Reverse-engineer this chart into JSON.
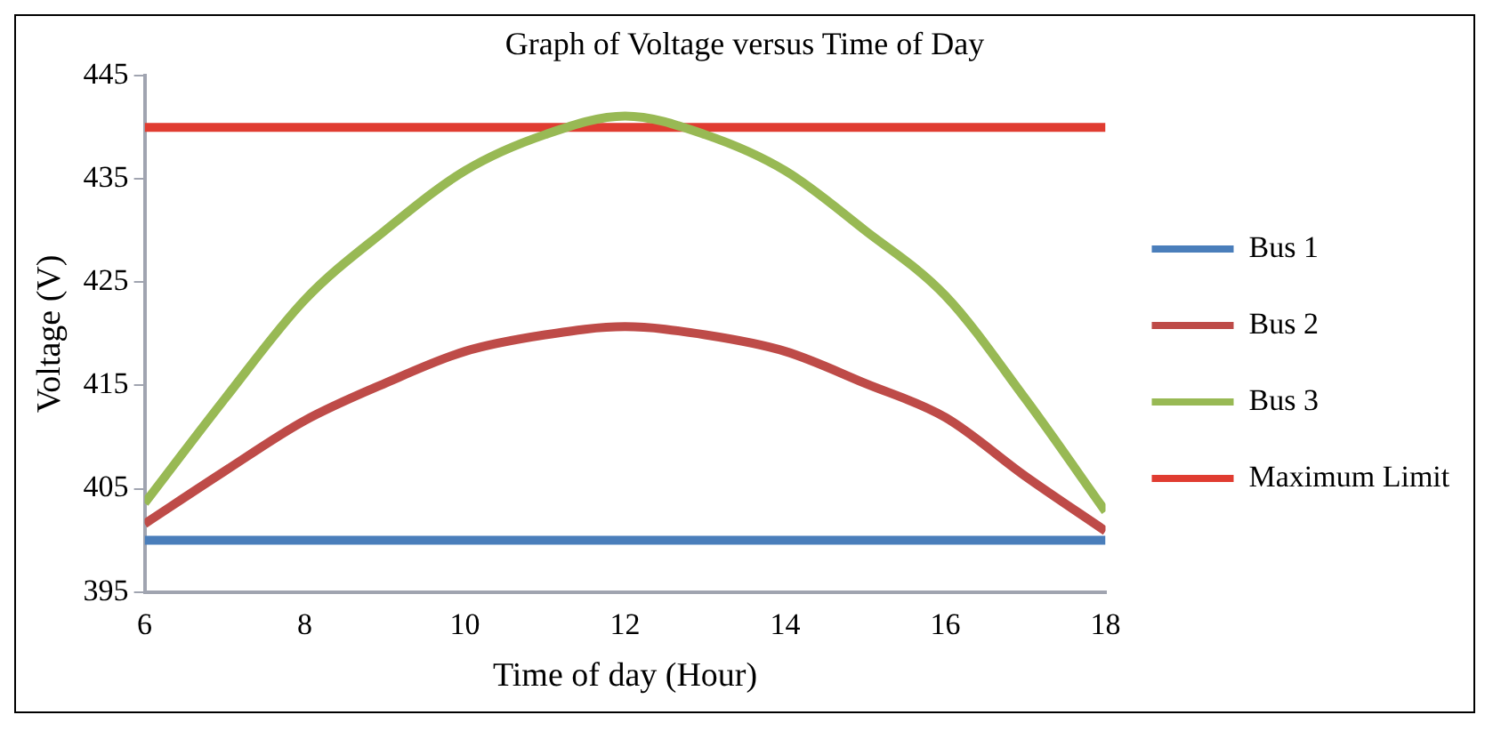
{
  "chart_data": {
    "type": "line",
    "title": "Graph of Voltage versus Time of Day",
    "xlabel": "Time of day (Hour)",
    "ylabel": "Voltage (V)",
    "x": [
      6,
      7,
      8,
      9,
      10,
      11,
      12,
      13,
      14,
      15,
      16,
      17,
      18
    ],
    "series": [
      {
        "name": "Bus 1",
        "color": "#4a7ebb",
        "values": [
          400,
          400,
          400,
          400,
          400,
          400,
          400,
          400,
          400,
          400,
          400,
          400,
          400
        ]
      },
      {
        "name": "Bus 2",
        "color": "#be4b48",
        "values": [
          401.6,
          406.7,
          411.6,
          415.2,
          418.3,
          419.9,
          420.7,
          419.9,
          418.3,
          415.2,
          411.9,
          406.2,
          400.9
        ]
      },
      {
        "name": "Bus 3",
        "color": "#98b954",
        "values": [
          403.6,
          413.7,
          423.3,
          430,
          435.8,
          439.3,
          441.1,
          439.3,
          435.8,
          430,
          423.7,
          413.7,
          402.8
        ]
      },
      {
        "name": "Maximum Limit",
        "color": "#e03c31",
        "values": [
          440,
          440,
          440,
          440,
          440,
          440,
          440,
          440,
          440,
          440,
          440,
          440,
          440
        ]
      }
    ],
    "xlim": [
      6,
      18
    ],
    "xticks": [
      6,
      8,
      10,
      12,
      14,
      16,
      18
    ],
    "ylim": [
      395,
      445
    ],
    "yticks": [
      395,
      405,
      415,
      425,
      435,
      445
    ],
    "grid": false,
    "legend": "right",
    "marker": "none",
    "line_style": "solid"
  }
}
